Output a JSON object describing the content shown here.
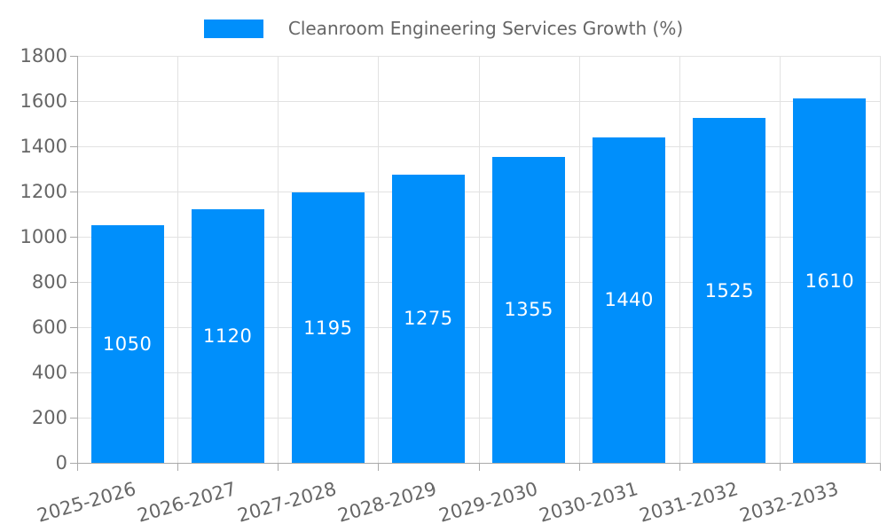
{
  "chart_data": {
    "type": "bar",
    "legend_label": "Cleanroom Engineering Services Growth (%)",
    "legend_position": "top",
    "categories": [
      "2025-2026",
      "2026-2027",
      "2027-2028",
      "2028-2029",
      "2029-2030",
      "2030-2031",
      "2031-2032",
      "2032-2033"
    ],
    "values": [
      1050,
      1120,
      1195,
      1275,
      1355,
      1440,
      1525,
      1610
    ],
    "value_labels": [
      "1050",
      "1120",
      "1195",
      "1275",
      "1355",
      "1440",
      "1525",
      "1610"
    ],
    "xlabel": "",
    "ylabel": "",
    "ylim": [
      0,
      1800
    ],
    "ytick_step": 200,
    "ytick_labels": [
      "0",
      "200",
      "400",
      "600",
      "800",
      "1000",
      "1200",
      "1400",
      "1600",
      "1800"
    ],
    "grid": true,
    "x_label_rotation": -16,
    "bar_color": "#008FFB",
    "grid_color": "#e2e2e2",
    "axis_color": "#a9a9a9",
    "label_color": "#666666",
    "value_label_color": "#ffffff"
  }
}
